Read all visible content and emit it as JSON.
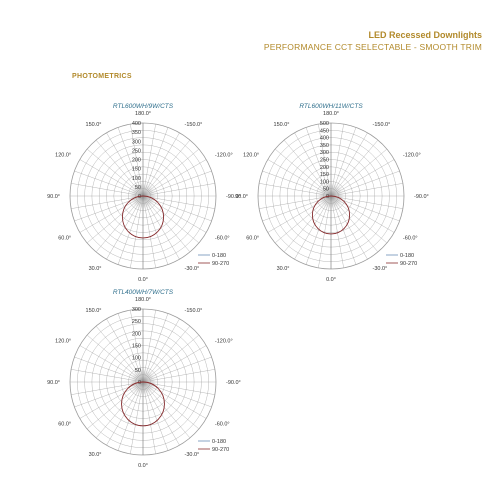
{
  "header": {
    "title": "LED Recessed Downlights",
    "subtitle": "PERFORMANCE CCT SELECTABLE - SMOOTH TRIM"
  },
  "section": {
    "title": "PHOTOMETRICS"
  },
  "colors": {
    "accent": "#b28a2b",
    "model_label": "#2f6f8c",
    "series_0_180": "#6a8fb8",
    "series_90_270": "#8b2e2e",
    "grid": "#9a9a9a"
  },
  "chart_data": [
    {
      "type": "polar",
      "title": "RTL600WH/9W/CTS",
      "radial_ticks": [
        0,
        50,
        100,
        150,
        200,
        250,
        300,
        350,
        400
      ],
      "radial_max": 400,
      "angle_labels": [
        "180.0°",
        "150.0°",
        "-150.0°",
        "120.0°",
        "-120.0°",
        "90.0°",
        "-90.0°",
        "60.0°",
        "-60.0°",
        "30.0°",
        "-30.0°",
        "0.0°"
      ],
      "series": [
        {
          "name": "0-180",
          "peak_candela": 230
        },
        {
          "name": "90-270",
          "peak_candela": 230
        }
      ],
      "legend_position": "bottom-right"
    },
    {
      "type": "polar",
      "title": "RTL600WH/11W/CTS",
      "radial_ticks": [
        0,
        50,
        100,
        150,
        200,
        250,
        300,
        350,
        400,
        450,
        500
      ],
      "radial_max": 500,
      "angle_labels": [
        "180.0°",
        "150.0°",
        "-150.0°",
        "120.0°",
        "-120.0°",
        "90.0°",
        "-90.0°",
        "60.0°",
        "-60.0°",
        "30.0°",
        "-30.0°",
        "0.0°"
      ],
      "series": [
        {
          "name": "0-180",
          "peak_candela": 260
        },
        {
          "name": "90-270",
          "peak_candela": 260
        }
      ],
      "legend_position": "bottom-right"
    },
    {
      "type": "polar",
      "title": "RTL400WH/7W/CTS",
      "radial_ticks": [
        0,
        50,
        100,
        150,
        200,
        250,
        300
      ],
      "radial_max": 300,
      "angle_labels": [
        "180.0°",
        "150.0°",
        "-150.0°",
        "120.0°",
        "-120.0°",
        "90.0°",
        "-90.0°",
        "60.0°",
        "-60.0°",
        "30.0°",
        "-30.0°",
        "0.0°"
      ],
      "series": [
        {
          "name": "0-180",
          "peak_candela": 180
        },
        {
          "name": "90-270",
          "peak_candela": 180
        }
      ],
      "legend_position": "bottom-right"
    }
  ]
}
